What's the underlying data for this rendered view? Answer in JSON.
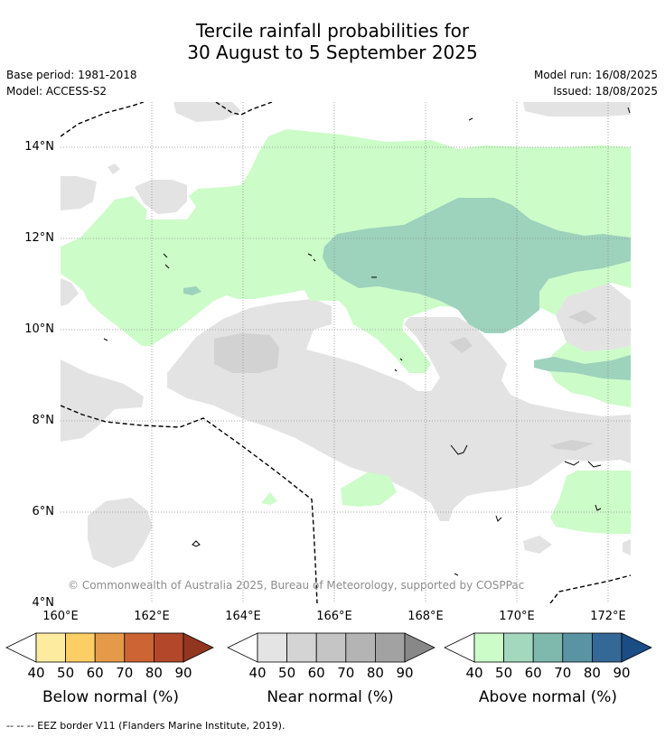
{
  "title_line1": "Tercile rainfall probabilities for",
  "title_line2": "30 August to 5 September 2025",
  "base_period": "Base period: 1981-2018",
  "model": "Model: ACCESS-S2",
  "model_run": "Model run: 16/08/2025",
  "issued": "Issued: 18/08/2025",
  "copyright": "© Commonwealth of Australia 2025, Bureau of Meteorology, supported by COSPPac",
  "footer": "--  --  -- EEZ border V11 (Flanders Marine Institute, 2019).",
  "map": {
    "lon_range": [
      160,
      172.5
    ],
    "lat_range": [
      4,
      15
    ],
    "lon_ticks": [
      "160°E",
      "162°E",
      "164°E",
      "166°E",
      "168°E",
      "170°E",
      "172°E"
    ],
    "lat_ticks": [
      "14°N",
      "12°N",
      "10°N",
      "8°N",
      "6°N",
      "4°N"
    ],
    "colors": {
      "near_normal_40": "#e3e3e3",
      "near_normal_50": "#d2d2d2",
      "above_normal_40": "#ccfcc8",
      "above_normal_50": "#9dd2bc",
      "eez_border": "#000000"
    }
  },
  "colorbars": [
    {
      "title": "Below normal (%)",
      "labels": [
        "40",
        "50",
        "60",
        "70",
        "80",
        "90"
      ],
      "colors": [
        "#ffffff",
        "#fdeca0",
        "#fcce65",
        "#e59a4a",
        "#cc6434",
        "#b2472a",
        "#923620"
      ]
    },
    {
      "title": "Near normal (%)",
      "labels": [
        "40",
        "50",
        "60",
        "70",
        "80",
        "90"
      ],
      "colors": [
        "#ffffff",
        "#e4e4e4",
        "#d4d4d4",
        "#c5c5c5",
        "#b4b4b4",
        "#a2a2a2",
        "#888888"
      ]
    },
    {
      "title": "Above normal (%)",
      "labels": [
        "40",
        "50",
        "60",
        "70",
        "80",
        "90"
      ],
      "colors": [
        "#ffffff",
        "#ccfcc8",
        "#a3d8be",
        "#7fb8ad",
        "#5a94a2",
        "#346896",
        "#1a4c86"
      ]
    }
  ]
}
